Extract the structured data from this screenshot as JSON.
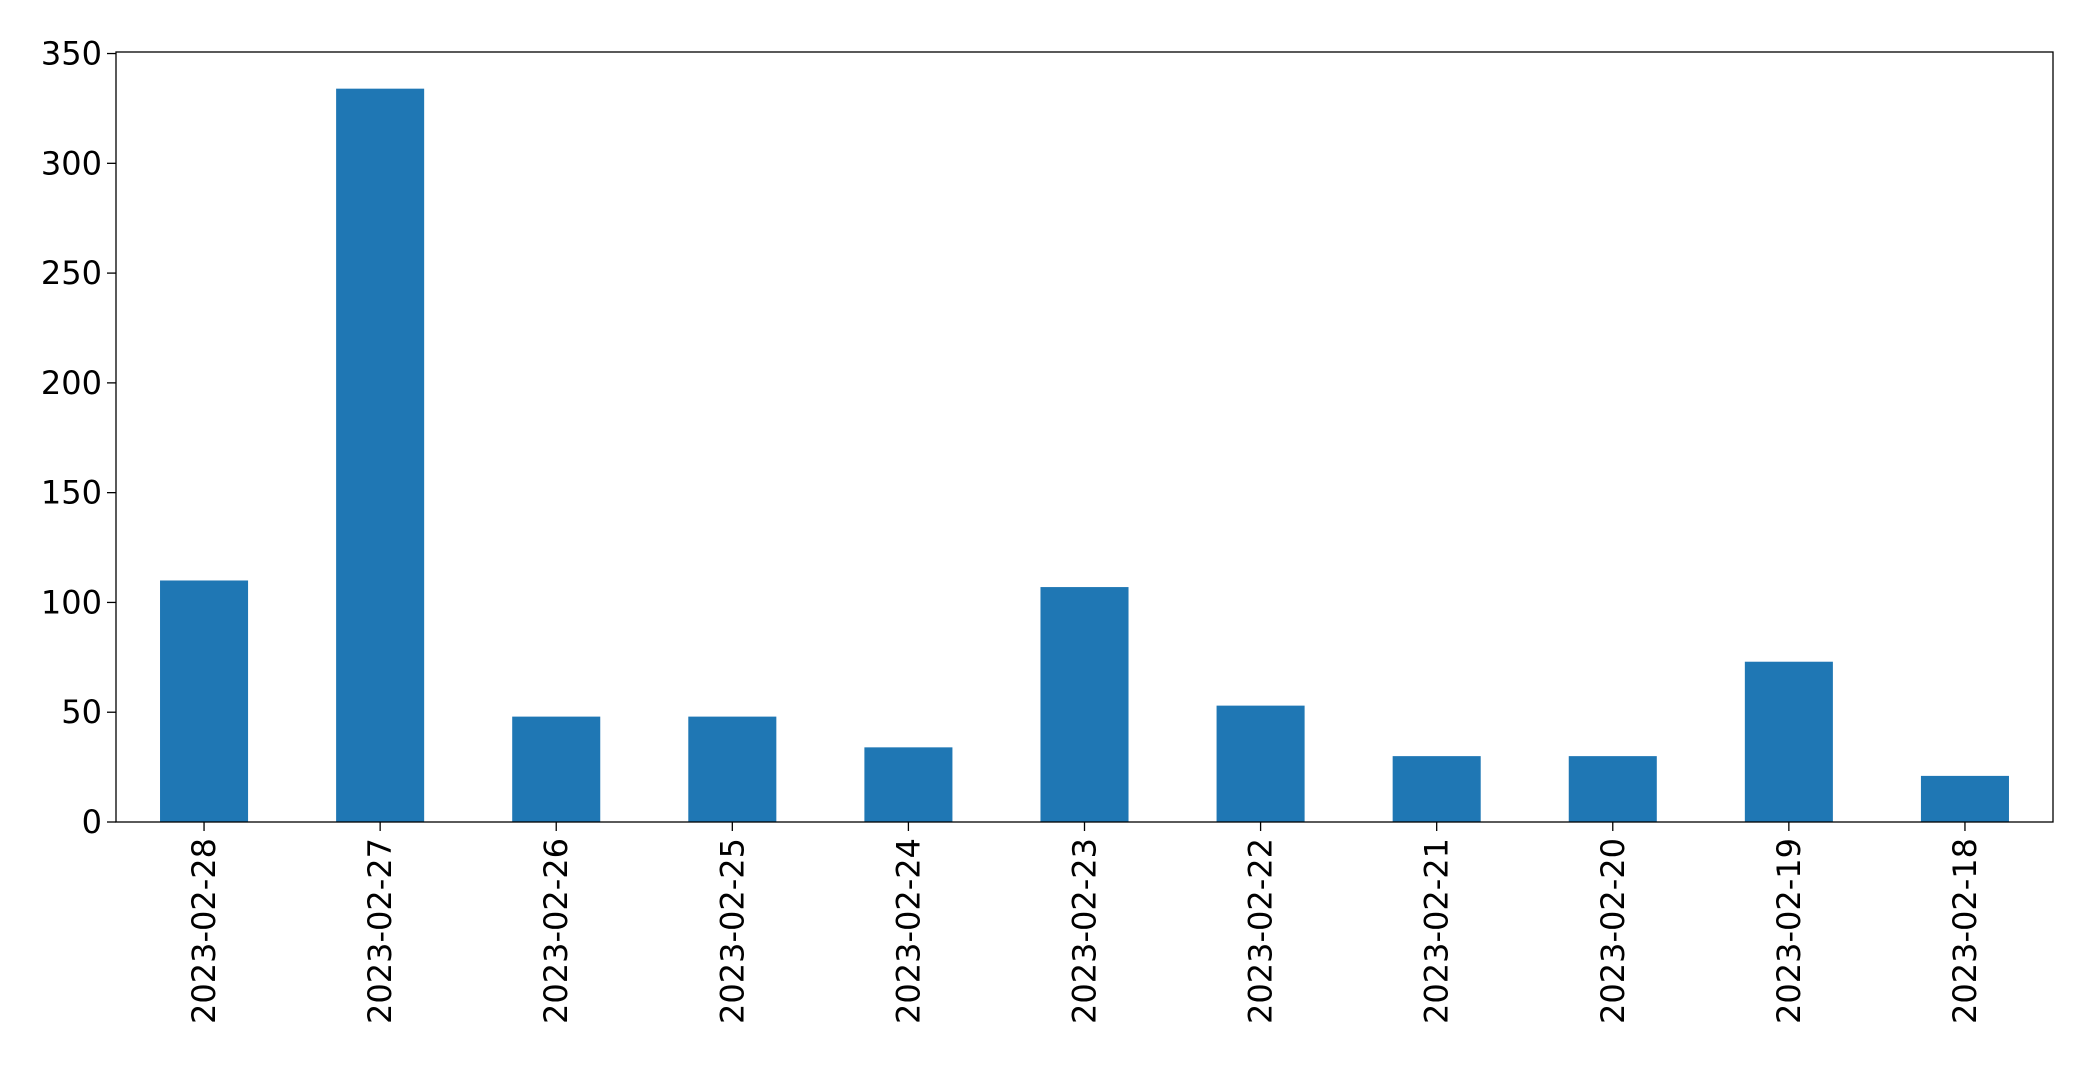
{
  "chart_data": {
    "type": "bar",
    "categories": [
      "2023-02-28",
      "2023-02-27",
      "2023-02-26",
      "2023-02-25",
      "2023-02-24",
      "2023-02-23",
      "2023-02-22",
      "2023-02-21",
      "2023-02-20",
      "2023-02-19",
      "2023-02-18"
    ],
    "values": [
      110,
      334,
      48,
      48,
      34,
      107,
      53,
      30,
      30,
      73,
      21
    ],
    "color": "#1f77b4",
    "ylim": [
      0,
      350.7
    ],
    "yticks": [
      0,
      50,
      100,
      150,
      200,
      250,
      300,
      350
    ],
    "grid": false
  }
}
